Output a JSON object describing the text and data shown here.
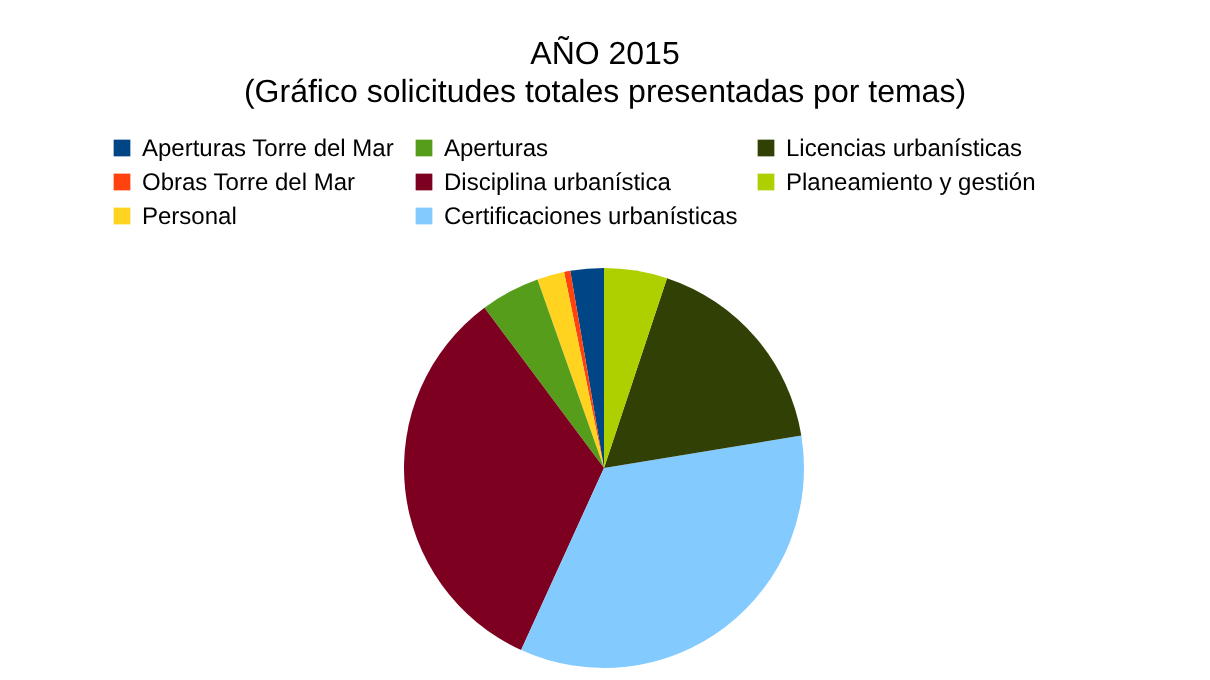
{
  "chart_data": {
    "type": "pie",
    "title": "AÑO 2015",
    "subtitle": "(Gráfico solicitudes totales presentadas por temas)",
    "categories": [
      "Aperturas Torre del Mar",
      "Obras Torre del Mar",
      "Personal",
      "Aperturas",
      "Disciplina urbanística",
      "Certificaciones urbanísticas",
      "Licencias urbanísticas",
      "Planeamiento y gestión"
    ],
    "values": [
      2.7,
      0.5,
      2.2,
      4.8,
      33.0,
      34.4,
      17.3,
      5.1
    ],
    "colors": [
      "#004586",
      "#ff420e",
      "#ffd320",
      "#579d1c",
      "#7e0021",
      "#83caff",
      "#314004",
      "#aecf00"
    ],
    "legend": "top left"
  }
}
